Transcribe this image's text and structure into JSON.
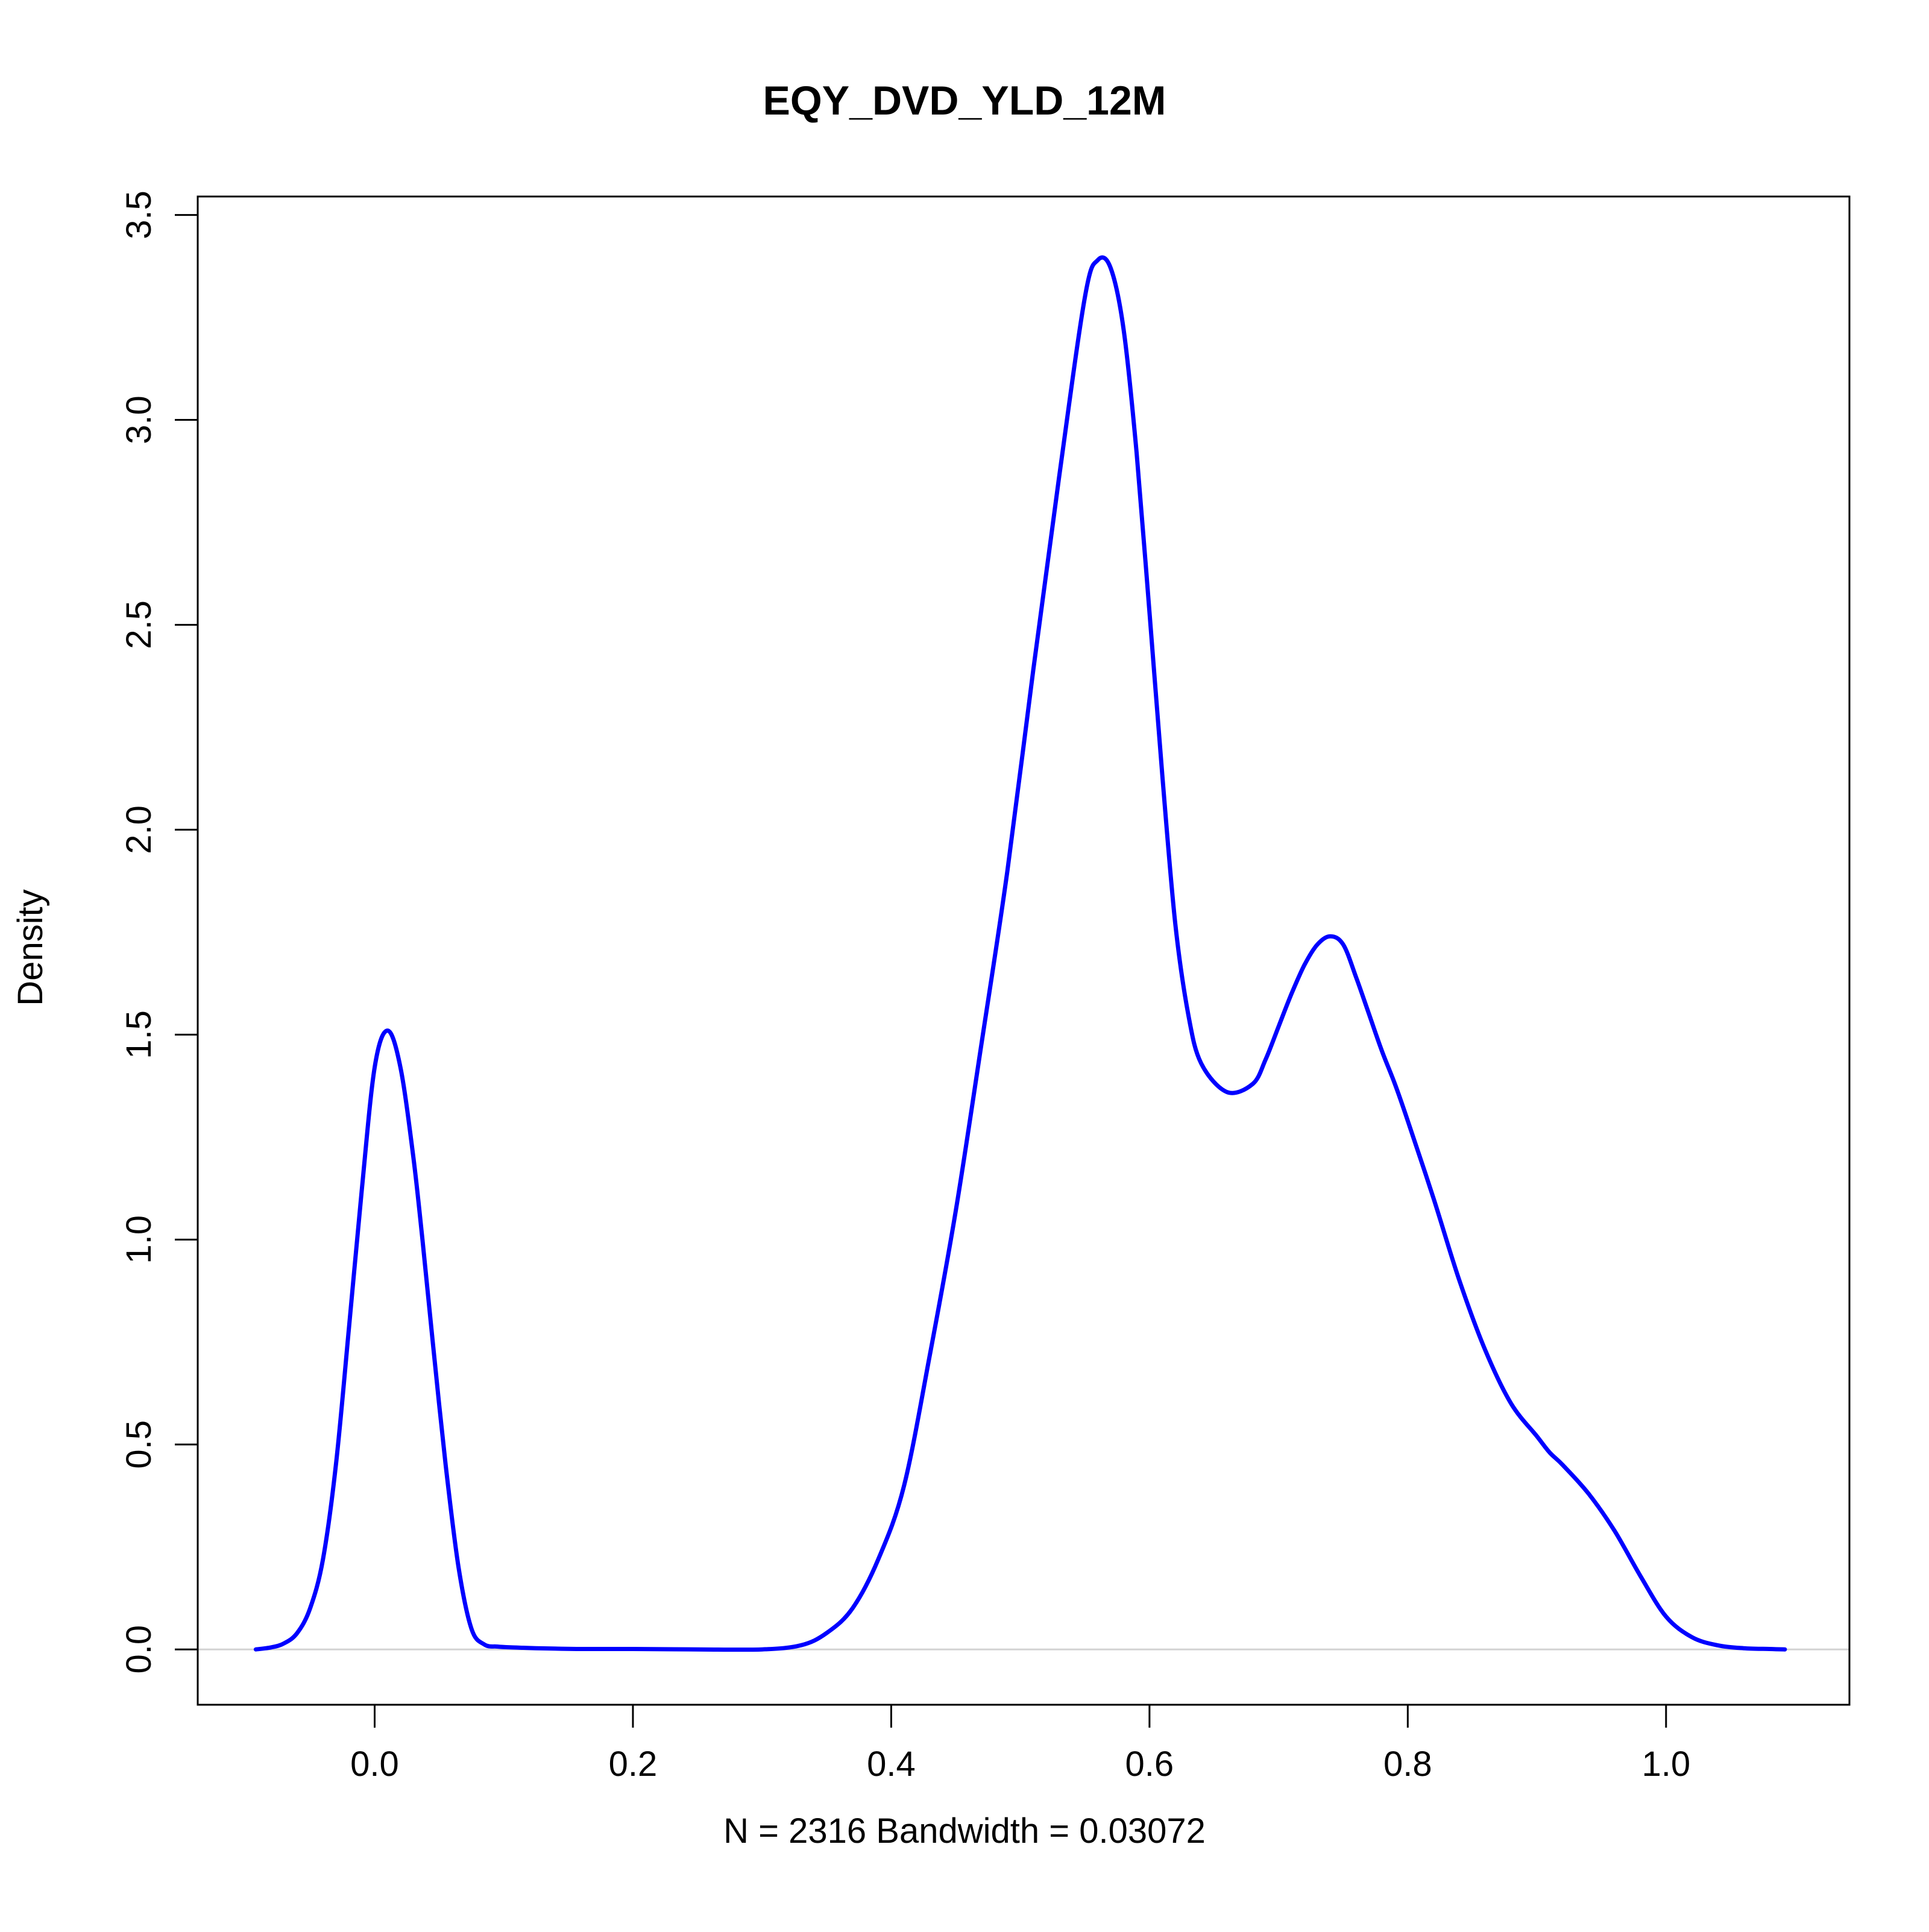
{
  "chart_data": {
    "type": "line",
    "title": "EQY_DVD_YLD_12M",
    "xlabel": "N = 2316   Bandwidth = 0.03072",
    "ylabel": "Density",
    "xlim": [
      -0.137,
      1.142
    ],
    "ylim": [
      -0.135,
      3.545
    ],
    "x_ticks": [
      0.0,
      0.2,
      0.4,
      0.6,
      0.8,
      1.0
    ],
    "x_tick_labels": [
      "0.0",
      "0.2",
      "0.4",
      "0.6",
      "0.8",
      "1.0"
    ],
    "y_ticks": [
      0.0,
      0.5,
      1.0,
      1.5,
      2.0,
      2.5,
      3.0,
      3.5
    ],
    "y_tick_labels": [
      "0.0",
      "0.5",
      "1.0",
      "1.5",
      "2.0",
      "2.5",
      "3.0",
      "3.5"
    ],
    "grid": false,
    "baseline": 0,
    "colors": {
      "line": "#0000ff",
      "baseline": "#d3d3d3",
      "frame": "#000000"
    },
    "series": [
      {
        "color": "#0000ff",
        "x": [
          -0.092,
          -0.08,
          -0.07,
          -0.06,
          -0.05,
          -0.04,
          -0.03,
          -0.02,
          -0.01,
          0.0,
          0.01,
          0.02,
          0.03,
          0.037,
          0.045,
          0.055,
          0.065,
          0.075,
          0.085,
          0.095,
          0.105,
          0.115,
          0.125,
          0.14,
          0.16,
          0.2,
          0.25,
          0.3,
          0.33,
          0.35,
          0.37,
          0.39,
          0.41,
          0.43,
          0.45,
          0.47,
          0.49,
          0.51,
          0.53,
          0.55,
          0.56,
          0.57,
          0.58,
          0.59,
          0.6,
          0.61,
          0.62,
          0.63,
          0.64,
          0.66,
          0.68,
          0.69,
          0.7,
          0.71,
          0.72,
          0.73,
          0.74,
          0.75,
          0.76,
          0.77,
          0.78,
          0.79,
          0.8,
          0.82,
          0.84,
          0.86,
          0.88,
          0.9,
          0.91,
          0.92,
          0.94,
          0.96,
          0.98,
          1.0,
          1.02,
          1.04,
          1.06,
          1.08,
          1.092
        ],
        "y": [
          0.0,
          0.005,
          0.015,
          0.04,
          0.1,
          0.22,
          0.45,
          0.78,
          1.12,
          1.42,
          1.51,
          1.42,
          1.2,
          1.0,
          0.75,
          0.45,
          0.2,
          0.05,
          0.012,
          0.007,
          0.005,
          0.004,
          0.003,
          0.002,
          0.001,
          0.001,
          0.0,
          0.0,
          0.01,
          0.04,
          0.1,
          0.22,
          0.4,
          0.72,
          1.07,
          1.48,
          1.9,
          2.39,
          2.86,
          3.3,
          3.39,
          3.37,
          3.22,
          2.92,
          2.53,
          2.13,
          1.77,
          1.55,
          1.43,
          1.36,
          1.38,
          1.44,
          1.52,
          1.6,
          1.67,
          1.72,
          1.74,
          1.72,
          1.64,
          1.55,
          1.46,
          1.38,
          1.29,
          1.1,
          0.9,
          0.73,
          0.6,
          0.52,
          0.48,
          0.45,
          0.38,
          0.29,
          0.18,
          0.08,
          0.03,
          0.01,
          0.003,
          0.001,
          0.0
        ]
      }
    ]
  }
}
